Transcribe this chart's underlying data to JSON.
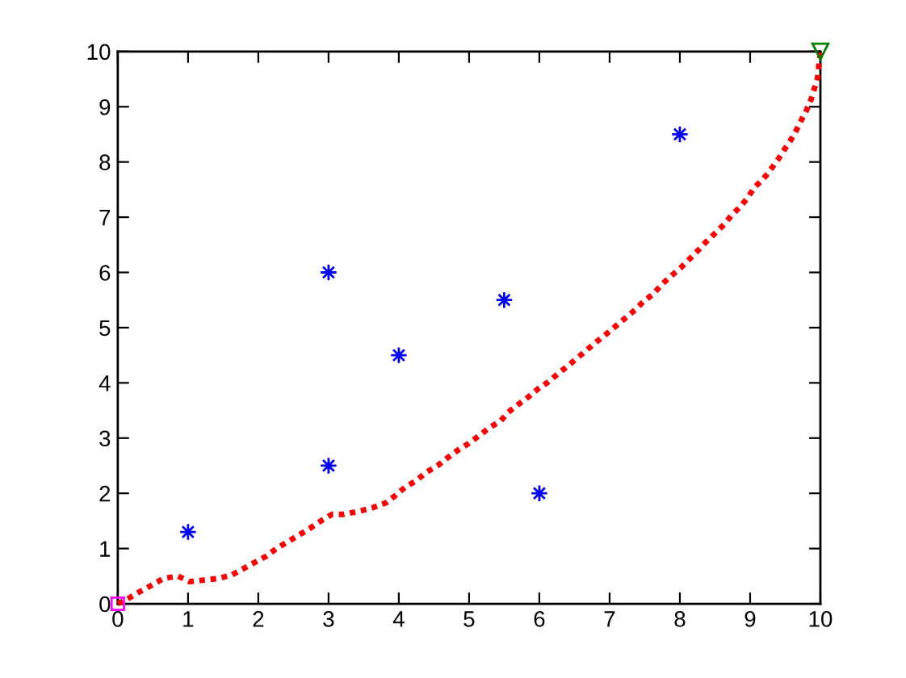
{
  "chart_data": {
    "type": "scatter",
    "xlim": [
      0,
      10
    ],
    "xticks": [
      0,
      1,
      2,
      3,
      4,
      5,
      6,
      7,
      8,
      9,
      10
    ],
    "ylim": [
      0,
      10
    ],
    "yticks": [
      0,
      1,
      2,
      3,
      4,
      5,
      6,
      7,
      8,
      9,
      10
    ],
    "grid": false,
    "legend": false,
    "series": [
      {
        "color": "#0000ff",
        "marker": "star",
        "x": [
          1,
          3,
          3,
          4,
          5.5,
          6,
          8
        ],
        "values": [
          1.3,
          2.5,
          6,
          4.5,
          5.5,
          2,
          8.5
        ]
      },
      {
        "type": "line",
        "color": "#ff0000",
        "marker": "none",
        "line_style": "dotted",
        "x": [
          0,
          0.17,
          0.33,
          0.49,
          0.65,
          0.86,
          1.02,
          1.23,
          1.44,
          1.62,
          1.78,
          1.95,
          2.11,
          2.27,
          2.43,
          2.57,
          2.73,
          2.89,
          3.05,
          3.22,
          3.45,
          3.63,
          3.82,
          3.95,
          4.1,
          4.25,
          4.39,
          4.55,
          4.69,
          4.85,
          4.99,
          5.15,
          5.29,
          5.45,
          5.55,
          5.69,
          5.85,
          5.98,
          6.12,
          6.26,
          6.4,
          6.54,
          6.67,
          6.81,
          6.95,
          7.09,
          7.23,
          7.36,
          7.48,
          7.62,
          7.75,
          7.87,
          8.01,
          8.12,
          8.26,
          8.37,
          8.51,
          8.63,
          8.74,
          8.86,
          8.97,
          9.06,
          9.18,
          9.29,
          9.39,
          9.48,
          9.57,
          9.66,
          9.73,
          9.8,
          9.87,
          9.91,
          9.96,
          10
        ],
        "values": [
          0,
          0.11,
          0.23,
          0.34,
          0.46,
          0.5,
          0.4,
          0.43,
          0.46,
          0.52,
          0.63,
          0.75,
          0.86,
          1.01,
          1.13,
          1.24,
          1.36,
          1.5,
          1.62,
          1.62,
          1.68,
          1.74,
          1.83,
          1.96,
          2.12,
          2.23,
          2.38,
          2.5,
          2.64,
          2.79,
          2.9,
          3.05,
          3.19,
          3.31,
          3.46,
          3.6,
          3.75,
          3.89,
          4.01,
          4.16,
          4.3,
          4.45,
          4.59,
          4.74,
          4.88,
          5.03,
          5.18,
          5.32,
          5.47,
          5.61,
          5.79,
          5.93,
          6.08,
          6.22,
          6.4,
          6.55,
          6.72,
          6.87,
          7.04,
          7.19,
          7.36,
          7.54,
          7.68,
          7.86,
          8.03,
          8.21,
          8.38,
          8.58,
          8.76,
          8.93,
          9.14,
          9.31,
          9.52,
          10
        ]
      },
      {
        "color": "#ff00ff",
        "marker": "square",
        "x": [
          0
        ],
        "values": [
          0
        ]
      },
      {
        "color": "#008000",
        "marker": "triangle",
        "x": [
          10
        ],
        "values": [
          10
        ]
      }
    ]
  }
}
